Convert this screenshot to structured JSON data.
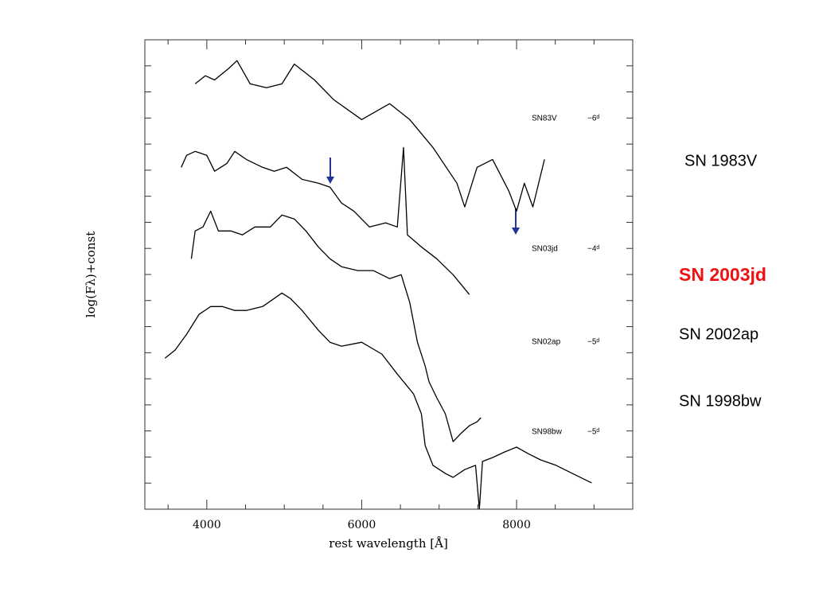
{
  "chart_data": {
    "type": "line",
    "xlabel": "rest wavelength [Å]",
    "ylabel": "log(Fλ)+const",
    "xlim": [
      3200,
      9500
    ],
    "xticks": [
      4000,
      6000,
      8000
    ],
    "xminorticks": [
      3500,
      4500,
      5000,
      5500,
      6500,
      7000,
      7500,
      8500,
      9000
    ],
    "ylim": [
      0,
      18
    ],
    "y_tick_marks": [
      1,
      2,
      3,
      4,
      5,
      6,
      7,
      8,
      9,
      10,
      11,
      12,
      13,
      14,
      15,
      16,
      17
    ],
    "series": [
      {
        "name": "SN83V",
        "phase": "−6ᵈ",
        "color": "#000000",
        "x": [
          3850,
          3980,
          4100,
          4290,
          4390,
          4560,
          4770,
          4970,
          5130,
          5390,
          5640,
          6000,
          6360,
          6620,
          6920,
          7230,
          7330,
          7490,
          7690,
          7900,
          8000,
          8100,
          8210,
          8360
        ],
        "values": [
          16.31,
          16.62,
          16.46,
          16.92,
          17.2,
          16.31,
          16.16,
          16.31,
          17.07,
          16.46,
          15.7,
          14.94,
          15.55,
          14.94,
          13.87,
          12.5,
          11.59,
          13.11,
          13.41,
          12.2,
          11.43,
          12.5,
          11.59,
          13.41
        ]
      },
      {
        "name": "SN03jd",
        "phase": "−4ᵈ",
        "color": "#000000",
        "x": [
          3670,
          3740,
          3850,
          4000,
          4100,
          4260,
          4360,
          4510,
          4720,
          4870,
          5030,
          5230,
          5440,
          5590,
          5740,
          5900,
          6100,
          6310,
          6460,
          6540,
          6590,
          6770,
          6970,
          7180,
          7390
        ],
        "values": [
          13.11,
          13.57,
          13.72,
          13.57,
          12.96,
          13.26,
          13.72,
          13.41,
          13.11,
          12.96,
          13.11,
          12.65,
          12.5,
          12.35,
          11.74,
          11.43,
          10.82,
          10.98,
          10.82,
          13.87,
          10.52,
          10.06,
          9.6,
          8.99,
          8.23
        ]
      },
      {
        "name": "SN02ap",
        "phase": "−5ᵈ",
        "color": "#000000",
        "x": [
          3800,
          3850,
          3950,
          4050,
          4150,
          4310,
          4460,
          4620,
          4820,
          4970,
          5130,
          5280,
          5440,
          5590,
          5740,
          5950,
          6150,
          6360,
          6510,
          6620,
          6720,
          6820,
          6870,
          6970,
          7080,
          7180,
          7280,
          7390,
          7490,
          7540
        ],
        "values": [
          9.6,
          10.67,
          10.82,
          11.43,
          10.67,
          10.67,
          10.52,
          10.82,
          10.82,
          11.28,
          11.13,
          10.67,
          10.06,
          9.6,
          9.3,
          9.15,
          9.15,
          8.84,
          8.99,
          7.93,
          6.4,
          5.49,
          4.88,
          4.27,
          3.66,
          2.59,
          2.9,
          3.2,
          3.35,
          3.51
        ]
      },
      {
        "name": "SN98bw",
        "phase": "−5ᵈ",
        "color": "#000000",
        "x": [
          3460,
          3590,
          3740,
          3900,
          4050,
          4200,
          4360,
          4510,
          4720,
          4870,
          4970,
          5080,
          5230,
          5440,
          5590,
          5740,
          6000,
          6260,
          6460,
          6670,
          6770,
          6820,
          6920,
          7080,
          7180,
          7330,
          7470,
          7520,
          7560,
          7690,
          7850,
          8000,
          8150,
          8310,
          8510,
          8720,
          8970
        ],
        "values": [
          5.79,
          6.1,
          6.71,
          7.47,
          7.77,
          7.77,
          7.62,
          7.62,
          7.77,
          8.08,
          8.29,
          8.08,
          7.62,
          6.86,
          6.4,
          6.25,
          6.4,
          5.95,
          5.18,
          4.42,
          3.66,
          2.44,
          1.68,
          1.37,
          1.22,
          1.52,
          1.68,
          0,
          1.83,
          1.98,
          2.2,
          2.38,
          2.13,
          1.89,
          1.68,
          1.37,
          1.01
        ]
      }
    ]
  },
  "side_labels": [
    {
      "text": "SN 1983V",
      "color": "#000000",
      "bold": false
    },
    {
      "text": "SN 2003jd",
      "color": "#ee1111",
      "bold": true
    },
    {
      "text": "SN 2002ap",
      "color": "#000000",
      "bold": false
    },
    {
      "text": "SN 1998bw",
      "color": "#000000",
      "bold": false
    }
  ]
}
